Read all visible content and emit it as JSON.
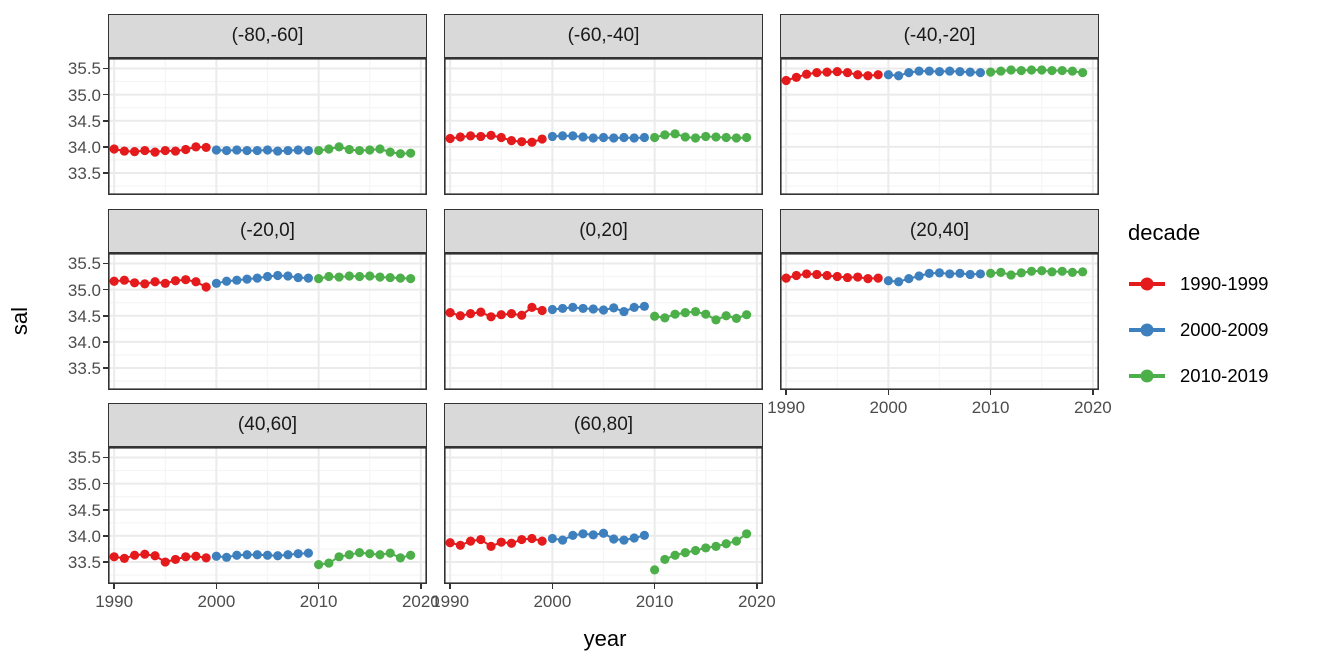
{
  "figure": {
    "y_axis_title": "sal",
    "x_axis_title": "year"
  },
  "legend": {
    "title": "decade",
    "entries": [
      {
        "label": "1990-1999",
        "color": "#e41a1c"
      },
      {
        "label": "2000-2009",
        "color": "#3e80bd"
      },
      {
        "label": "2010-2019",
        "color": "#4daf4a"
      }
    ]
  },
  "style": {
    "strip_fill": "#d9d9d9",
    "strip_border": "#333333",
    "panel_border": "#333333",
    "grid_major": "#ebebeb",
    "grid_minor": "#f5f5f5",
    "tick_label_color": "#4d4d4d"
  },
  "chart_data": {
    "type": "line",
    "title": "",
    "xlabel": "year",
    "ylabel": "sal",
    "legend_title": "decade",
    "x_years": [
      1990,
      1991,
      1992,
      1993,
      1994,
      1995,
      1996,
      1997,
      1998,
      1999,
      2000,
      2001,
      2002,
      2003,
      2004,
      2005,
      2006,
      2007,
      2008,
      2009,
      2010,
      2011,
      2012,
      2013,
      2014,
      2015,
      2016,
      2017,
      2018,
      2019
    ],
    "xlim": [
      1989.4,
      2020.6
    ],
    "ylim": [
      33.08,
      35.7
    ],
    "y_major_ticks": [
      35.5,
      35.0,
      34.5,
      34.0,
      33.5
    ],
    "y_tick_labels": [
      "35.5",
      "35.0",
      "34.5",
      "34.0",
      "33.5"
    ],
    "y_minor_ticks": [
      35.25,
      34.75,
      34.25,
      33.75,
      33.25
    ],
    "x_major_ticks": [
      1990,
      2000,
      2010,
      2020
    ],
    "x_tick_labels": [
      "1990",
      "2000",
      "2010",
      "2020"
    ],
    "x_minor_ticks": [
      1995,
      2005,
      2015
    ],
    "series_names": [
      "1990-1999",
      "2000-2009",
      "2010-2019"
    ],
    "facets": [
      {
        "label": "(-80,-60]",
        "series": [
          [
            33.96,
            33.92,
            33.91,
            33.93,
            33.9,
            33.93,
            33.92,
            33.95,
            34.0,
            33.99
          ],
          [
            33.94,
            33.93,
            33.94,
            33.93,
            33.93,
            33.94,
            33.92,
            33.93,
            33.94,
            33.93
          ],
          [
            33.93,
            33.96,
            34.0,
            33.95,
            33.93,
            33.94,
            33.96,
            33.9,
            33.87,
            33.88
          ]
        ],
        "line_start": [
          0,
          0,
          0
        ]
      },
      {
        "label": "(-60,-40]",
        "series": [
          [
            34.16,
            34.19,
            34.21,
            34.2,
            34.22,
            34.18,
            34.12,
            34.1,
            34.09,
            34.15
          ],
          [
            34.2,
            34.21,
            34.21,
            34.19,
            34.17,
            34.18,
            34.17,
            34.18,
            34.17,
            34.18
          ],
          [
            34.18,
            34.23,
            34.25,
            34.19,
            34.17,
            34.2,
            34.19,
            34.18,
            34.17,
            34.18
          ]
        ],
        "line_start": [
          0,
          0,
          0
        ]
      },
      {
        "label": "(-40,-20]",
        "series": [
          [
            35.27,
            35.33,
            35.39,
            35.42,
            35.43,
            35.44,
            35.42,
            35.38,
            35.36,
            35.38
          ],
          [
            35.38,
            35.36,
            35.42,
            35.45,
            35.45,
            35.44,
            35.45,
            35.44,
            35.43,
            35.42
          ],
          [
            35.43,
            35.45,
            35.47,
            35.46,
            35.47,
            35.47,
            35.46,
            35.46,
            35.45,
            35.42
          ]
        ],
        "line_start": [
          0,
          0,
          0
        ]
      },
      {
        "label": "(-20,0]",
        "series": [
          [
            35.16,
            35.18,
            35.13,
            35.11,
            35.15,
            35.12,
            35.17,
            35.19,
            35.15,
            35.05
          ],
          [
            35.12,
            35.16,
            35.18,
            35.2,
            35.22,
            35.25,
            35.27,
            35.26,
            35.23,
            35.22
          ],
          [
            35.21,
            35.25,
            35.24,
            35.26,
            35.25,
            35.26,
            35.24,
            35.23,
            35.22,
            35.21
          ]
        ],
        "line_start": [
          0,
          0,
          0
        ]
      },
      {
        "label": "(0,20]",
        "series": [
          [
            34.56,
            34.5,
            34.54,
            34.57,
            34.48,
            34.52,
            34.54,
            34.51,
            34.66,
            34.6
          ],
          [
            34.62,
            34.64,
            34.66,
            34.64,
            34.63,
            34.61,
            34.65,
            34.58,
            34.66,
            34.68
          ],
          [
            34.49,
            34.46,
            34.53,
            34.56,
            34.58,
            34.53,
            34.42,
            34.5,
            34.45,
            34.52
          ]
        ],
        "line_start": [
          0,
          0,
          0
        ]
      },
      {
        "label": "(20,40]",
        "series": [
          [
            35.22,
            35.27,
            35.3,
            35.29,
            35.27,
            35.25,
            35.23,
            35.24,
            35.21,
            35.22
          ],
          [
            35.17,
            35.15,
            35.21,
            35.26,
            35.31,
            35.32,
            35.3,
            35.31,
            35.29,
            35.3
          ],
          [
            35.31,
            35.33,
            35.28,
            35.32,
            35.35,
            35.36,
            35.34,
            35.35,
            35.33,
            35.34
          ]
        ],
        "line_start": [
          0,
          0,
          0
        ]
      },
      {
        "label": "(40,60]",
        "series": [
          [
            33.6,
            33.57,
            33.63,
            33.65,
            33.62,
            33.5,
            33.55,
            33.6,
            33.61,
            33.58
          ],
          [
            33.61,
            33.59,
            33.63,
            33.64,
            33.64,
            33.63,
            33.62,
            33.64,
            33.66,
            33.67
          ],
          [
            33.45,
            33.48,
            33.6,
            33.64,
            33.68,
            33.66,
            33.64,
            33.67,
            33.58,
            33.63
          ]
        ],
        "line_start": [
          0,
          0,
          0
        ]
      },
      {
        "label": "(60,80]",
        "series": [
          [
            33.87,
            33.82,
            33.9,
            33.93,
            33.8,
            33.88,
            33.86,
            33.93,
            33.95,
            33.9
          ],
          [
            33.95,
            33.92,
            34.01,
            34.04,
            34.02,
            34.05,
            33.94,
            33.92,
            33.96,
            34.01
          ],
          [
            33.35,
            33.55,
            33.63,
            33.68,
            33.72,
            33.77,
            33.8,
            33.85,
            33.9,
            34.04
          ]
        ],
        "line_start": [
          0,
          0,
          1
        ]
      }
    ]
  }
}
